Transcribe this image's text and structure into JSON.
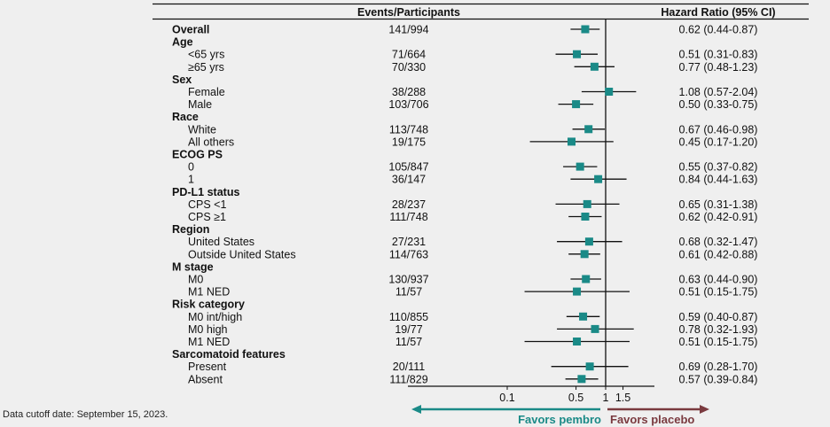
{
  "chart_data": {
    "type": "forest",
    "header": {
      "events": "Events/Participants",
      "hr": "Hazard Ratio (95% CI)"
    },
    "rows": [
      {
        "label": "Overall",
        "kind": "overall",
        "events": "141/994",
        "hr_text": "0.62 (0.44-0.87)",
        "hr": 0.62,
        "lo": 0.44,
        "hi": 0.87
      },
      {
        "label": "Age",
        "kind": "group"
      },
      {
        "label": "<65 yrs",
        "kind": "sub",
        "events": "71/664",
        "hr_text": "0.51 (0.31-0.83)",
        "hr": 0.51,
        "lo": 0.31,
        "hi": 0.83
      },
      {
        "label": "≥65 yrs",
        "kind": "sub",
        "events": "70/330",
        "hr_text": "0.77 (0.48-1.23)",
        "hr": 0.77,
        "lo": 0.48,
        "hi": 1.23
      },
      {
        "label": "Sex",
        "kind": "group"
      },
      {
        "label": "Female",
        "kind": "sub",
        "events": "38/288",
        "hr_text": "1.08 (0.57-2.04)",
        "hr": 1.08,
        "lo": 0.57,
        "hi": 2.04
      },
      {
        "label": "Male",
        "kind": "sub",
        "events": "103/706",
        "hr_text": "0.50 (0.33-0.75)",
        "hr": 0.5,
        "lo": 0.33,
        "hi": 0.75
      },
      {
        "label": "Race",
        "kind": "group"
      },
      {
        "label": "White",
        "kind": "sub",
        "events": "113/748",
        "hr_text": "0.67 (0.46-0.98)",
        "hr": 0.67,
        "lo": 0.46,
        "hi": 0.98
      },
      {
        "label": "All others",
        "kind": "sub",
        "events": "19/175",
        "hr_text": "0.45 (0.17-1.20)",
        "hr": 0.45,
        "lo": 0.17,
        "hi": 1.2
      },
      {
        "label": "ECOG PS",
        "kind": "group"
      },
      {
        "label": "0",
        "kind": "sub",
        "events": "105/847",
        "hr_text": "0.55 (0.37-0.82)",
        "hr": 0.55,
        "lo": 0.37,
        "hi": 0.82
      },
      {
        "label": "1",
        "kind": "sub",
        "events": "36/147",
        "hr_text": "0.84 (0.44-1.63)",
        "hr": 0.84,
        "lo": 0.44,
        "hi": 1.63
      },
      {
        "label": "PD-L1 status",
        "kind": "group"
      },
      {
        "label": "CPS <1",
        "kind": "sub",
        "events": "28/237",
        "hr_text": "0.65 (0.31-1.38)",
        "hr": 0.65,
        "lo": 0.31,
        "hi": 1.38
      },
      {
        "label": "CPS ≥1",
        "kind": "sub",
        "events": "111/748",
        "hr_text": "0.62 (0.42-0.91)",
        "hr": 0.62,
        "lo": 0.42,
        "hi": 0.91
      },
      {
        "label": "Region",
        "kind": "group"
      },
      {
        "label": "United States",
        "kind": "sub",
        "events": "27/231",
        "hr_text": "0.68 (0.32-1.47)",
        "hr": 0.68,
        "lo": 0.32,
        "hi": 1.47
      },
      {
        "label": "Outside United States",
        "kind": "sub",
        "events": "114/763",
        "hr_text": "0.61 (0.42-0.88)",
        "hr": 0.61,
        "lo": 0.42,
        "hi": 0.88
      },
      {
        "label": "M stage",
        "kind": "group"
      },
      {
        "label": "M0",
        "kind": "sub",
        "events": "130/937",
        "hr_text": "0.63 (0.44-0.90)",
        "hr": 0.63,
        "lo": 0.44,
        "hi": 0.9
      },
      {
        "label": "M1 NED",
        "kind": "sub",
        "events": "11/57",
        "hr_text": "0.51 (0.15-1.75)",
        "hr": 0.51,
        "lo": 0.15,
        "hi": 1.75
      },
      {
        "label": "Risk category",
        "kind": "group"
      },
      {
        "label": "M0 int/high",
        "kind": "sub",
        "events": "110/855",
        "hr_text": "0.59 (0.40-0.87)",
        "hr": 0.59,
        "lo": 0.4,
        "hi": 0.87
      },
      {
        "label": "M0 high",
        "kind": "sub",
        "events": "19/77",
        "hr_text": "0.78 (0.32-1.93)",
        "hr": 0.78,
        "lo": 0.32,
        "hi": 1.93
      },
      {
        "label": "M1 NED",
        "kind": "sub",
        "events": "11/57",
        "hr_text": "0.51 (0.15-1.75)",
        "hr": 0.51,
        "lo": 0.15,
        "hi": 1.75
      },
      {
        "label": "Sarcomatoid features",
        "kind": "group"
      },
      {
        "label": "Present",
        "kind": "sub",
        "events": "20/111",
        "hr_text": "0.69 (0.28-1.70)",
        "hr": 0.69,
        "lo": 0.28,
        "hi": 1.7
      },
      {
        "label": "Absent",
        "kind": "sub",
        "events": "111/829",
        "hr_text": "0.57 (0.39-0.84)",
        "hr": 0.57,
        "lo": 0.39,
        "hi": 0.84
      }
    ],
    "xscale": "log",
    "xticks": [
      {
        "value": 0.1,
        "label": "0.1"
      },
      {
        "value": 0.5,
        "label": "0.5"
      },
      {
        "value": 1,
        "label": "1"
      },
      {
        "value": 1.5,
        "label": "1.5"
      }
    ],
    "xlim": [
      0.07,
      2.1
    ],
    "reference_line": 1,
    "favors_left": "Favors pembro",
    "favors_right": "Favors placebo",
    "colors": {
      "marker": "#1a8a87",
      "favors_left": "#1a8a87",
      "favors_right": "#7a3a3f",
      "line": "#111111"
    }
  },
  "footnote": "Data cutoff date: September 15, 2023."
}
